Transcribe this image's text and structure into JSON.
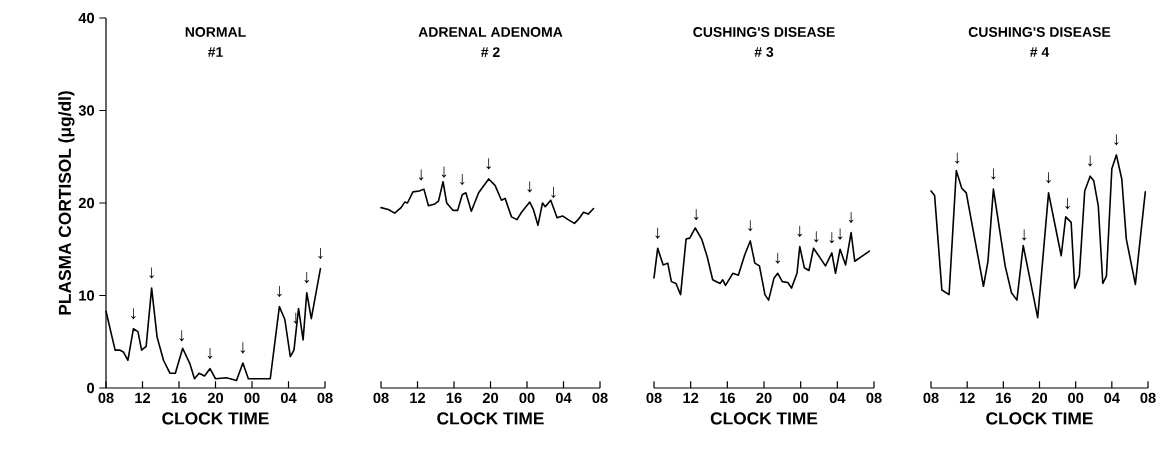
{
  "chart_data": [
    {
      "type": "line",
      "title": "NORMAL",
      "subtitle": "#1",
      "xlabel": "CLOCK TIME",
      "ylabel": "PLASMA CORTISOL (μg/dl)",
      "color": "#000000",
      "marker": "none",
      "line_style": "solid",
      "x": [
        8.0,
        9.0,
        9.5,
        9.9,
        10.4,
        11.0,
        11.5,
        11.9,
        12.4,
        13.0,
        13.6,
        14.3,
        15.0,
        15.6,
        16.4,
        17.2,
        17.7,
        18.2,
        18.8,
        19.4,
        20.0,
        21.2,
        22.3,
        23.0,
        23.6,
        26.0,
        27.0,
        27.6,
        28.2,
        28.6,
        29.1,
        29.6,
        30.0,
        30.5,
        31.5
      ],
      "values": [
        8.3,
        4.1,
        4.1,
        3.9,
        3.0,
        6.4,
        6.1,
        4.1,
        4.5,
        10.8,
        5.5,
        3.0,
        1.6,
        1.6,
        4.3,
        2.6,
        1.0,
        1.6,
        1.3,
        2.1,
        1.0,
        1.1,
        0.8,
        2.7,
        1.0,
        1.0,
        8.8,
        7.4,
        3.4,
        4.1,
        8.6,
        5.2,
        10.3,
        7.5,
        12.9
      ],
      "xlim": [
        8,
        32
      ],
      "xticks": [
        {
          "value": 8,
          "label": "08"
        },
        12,
        16,
        20,
        {
          "value": 24,
          "label": "00"
        },
        {
          "value": 28,
          "label": "04"
        },
        {
          "value": 32,
          "label": "08"
        }
      ],
      "ylim": [
        0,
        40
      ],
      "yticks": [
        0,
        10,
        20,
        30,
        40
      ],
      "annotations": [
        {
          "text": "↓",
          "x": 11.0,
          "y": 6.4
        },
        {
          "text": "↓",
          "x": 13.0,
          "y": 10.8
        },
        {
          "text": "↓",
          "x": 16.3,
          "y": 4.0
        },
        {
          "text": "↓",
          "x": 19.4,
          "y": 2.1
        },
        {
          "text": "↓",
          "x": 23.0,
          "y": 2.7
        },
        {
          "text": "↓",
          "x": 27.0,
          "y": 8.8
        },
        {
          "text": "↓",
          "x": 28.8,
          "y": 5.9
        },
        {
          "text": "↓",
          "x": 30.0,
          "y": 10.3
        },
        {
          "text": "↓",
          "x": 31.5,
          "y": 12.9
        }
      ]
    },
    {
      "type": "line",
      "title": "ADRENAL ADENOMA",
      "subtitle": "# 2",
      "xlabel": "CLOCK TIME",
      "color": "#000000",
      "marker": "none",
      "line_style": "solid",
      "tick_labels": "x",
      "x": [
        8.0,
        8.8,
        9.5,
        10.2,
        10.6,
        10.9,
        11.5,
        12.2,
        12.7,
        13.2,
        13.9,
        14.3,
        14.8,
        15.2,
        15.9,
        16.4,
        16.9,
        17.3,
        17.9,
        18.7,
        19.8,
        20.5,
        21.2,
        21.6,
        22.3,
        22.9,
        23.4,
        24.3,
        24.7,
        25.2,
        25.7,
        26.0,
        26.6,
        27.3,
        27.9,
        28.5,
        29.2,
        29.6,
        30.2,
        30.7,
        31.3
      ],
      "values": [
        19.5,
        19.3,
        18.9,
        19.5,
        20.1,
        20.0,
        21.2,
        21.3,
        21.5,
        19.7,
        19.9,
        20.2,
        22.3,
        20.0,
        19.2,
        19.2,
        20.9,
        21.1,
        19.1,
        21.1,
        22.6,
        21.9,
        20.3,
        20.5,
        18.5,
        18.2,
        19.0,
        20.1,
        19.3,
        17.6,
        20.0,
        19.6,
        20.3,
        18.4,
        18.6,
        18.2,
        17.8,
        18.2,
        19.0,
        18.8,
        19.4
      ],
      "xlim": [
        8,
        32
      ],
      "xticks": [
        {
          "value": 8,
          "label": "08"
        },
        12,
        16,
        20,
        {
          "value": 24,
          "label": "00"
        },
        {
          "value": 28,
          "label": "04"
        },
        {
          "value": 32,
          "label": "08"
        }
      ],
      "ylim": [
        0,
        40
      ],
      "annotations": [
        {
          "text": "↓",
          "x": 12.4,
          "y": 21.4
        },
        {
          "text": "↓",
          "x": 14.9,
          "y": 21.7
        },
        {
          "text": "↓",
          "x": 16.9,
          "y": 20.9
        },
        {
          "text": "↓",
          "x": 19.8,
          "y": 22.6
        },
        {
          "text": "↓",
          "x": 24.3,
          "y": 20.1
        },
        {
          "text": "↓",
          "x": 26.9,
          "y": 19.5
        }
      ]
    },
    {
      "type": "line",
      "title": "CUSHING'S DISEASE",
      "subtitle": "# 3",
      "xlabel": "CLOCK TIME",
      "color": "#000000",
      "marker": "none",
      "line_style": "solid",
      "tick_labels": "x",
      "x": [
        8.0,
        8.4,
        9.0,
        9.5,
        9.9,
        10.4,
        10.9,
        11.5,
        11.9,
        12.5,
        13.2,
        13.8,
        14.4,
        15.2,
        15.5,
        15.8,
        16.6,
        17.2,
        17.9,
        18.5,
        19.0,
        19.5,
        20.1,
        20.5,
        21.1,
        21.5,
        22.0,
        22.6,
        23.0,
        23.6,
        23.9,
        24.4,
        24.9,
        25.4,
        26.1,
        26.7,
        27.4,
        27.8,
        28.3,
        28.9,
        29.5,
        29.9,
        31.5
      ],
      "values": [
        11.9,
        15.1,
        13.3,
        13.5,
        11.5,
        11.3,
        10.1,
        16.1,
        16.2,
        17.3,
        16.1,
        14.2,
        11.7,
        11.3,
        11.7,
        11.1,
        12.4,
        12.2,
        14.4,
        15.9,
        13.5,
        13.2,
        10.1,
        9.5,
        11.9,
        12.4,
        11.5,
        11.4,
        10.8,
        12.4,
        15.3,
        13.0,
        12.7,
        15.1,
        14.1,
        13.2,
        14.6,
        12.4,
        15.0,
        13.3,
        16.8,
        13.7,
        14.8
      ],
      "xlim": [
        8,
        32
      ],
      "xticks": [
        {
          "value": 8,
          "label": "08"
        },
        12,
        16,
        20,
        {
          "value": 24,
          "label": "00"
        },
        {
          "value": 28,
          "label": "04"
        },
        {
          "value": 32,
          "label": "08"
        }
      ],
      "ylim": [
        0,
        40
      ],
      "annotations": [
        {
          "text": "↓",
          "x": 8.4,
          "y": 15.1
        },
        {
          "text": "↓",
          "x": 12.6,
          "y": 17.1
        },
        {
          "text": "↓",
          "x": 18.5,
          "y": 15.9
        },
        {
          "text": "↓",
          "x": 21.5,
          "y": 12.4
        },
        {
          "text": "↓",
          "x": 23.9,
          "y": 15.3
        },
        {
          "text": "↓",
          "x": 25.7,
          "y": 14.7
        },
        {
          "text": "↓",
          "x": 27.4,
          "y": 14.6
        },
        {
          "text": "↓",
          "x": 28.3,
          "y": 15.0
        },
        {
          "text": "↓",
          "x": 29.5,
          "y": 16.8
        }
      ]
    },
    {
      "type": "line",
      "title": "CUSHING'S DISEASE",
      "subtitle": "# 4",
      "xlabel": "CLOCK TIME",
      "color": "#000000",
      "marker": "none",
      "line_style": "solid",
      "tick_labels": "x",
      "x": [
        8.0,
        8.4,
        9.2,
        10.0,
        10.8,
        11.4,
        11.9,
        13.8,
        14.3,
        14.9,
        16.2,
        16.9,
        17.5,
        18.2,
        19.8,
        21.0,
        22.4,
        22.9,
        23.5,
        23.9,
        24.4,
        25.0,
        25.6,
        26.0,
        26.5,
        27.0,
        27.4,
        28.0,
        28.5,
        29.1,
        29.6,
        30.6,
        31.7
      ],
      "values": [
        21.3,
        20.8,
        10.6,
        10.1,
        23.5,
        21.6,
        21.1,
        11.0,
        13.7,
        21.5,
        13.2,
        10.3,
        9.5,
        15.4,
        7.6,
        21.1,
        14.3,
        18.5,
        17.9,
        10.8,
        12.1,
        21.3,
        22.9,
        22.4,
        19.7,
        11.3,
        12.1,
        23.7,
        25.2,
        22.6,
        16.1,
        11.2,
        21.2
      ],
      "xlim": [
        8,
        32
      ],
      "xticks": [
        {
          "value": 8,
          "label": "08"
        },
        12,
        16,
        20,
        {
          "value": 24,
          "label": "00"
        },
        {
          "value": 28,
          "label": "04"
        },
        {
          "value": 32,
          "label": "08"
        }
      ],
      "ylim": [
        0,
        40
      ],
      "annotations": [
        {
          "text": "↓",
          "x": 10.9,
          "y": 23.2
        },
        {
          "text": "↓",
          "x": 14.9,
          "y": 21.5
        },
        {
          "text": "↓",
          "x": 18.3,
          "y": 14.9
        },
        {
          "text": "↓",
          "x": 21.0,
          "y": 21.1
        },
        {
          "text": "↓",
          "x": 23.1,
          "y": 18.3
        },
        {
          "text": "↓",
          "x": 25.6,
          "y": 22.9
        },
        {
          "text": "↓",
          "x": 28.5,
          "y": 25.2
        }
      ]
    }
  ]
}
